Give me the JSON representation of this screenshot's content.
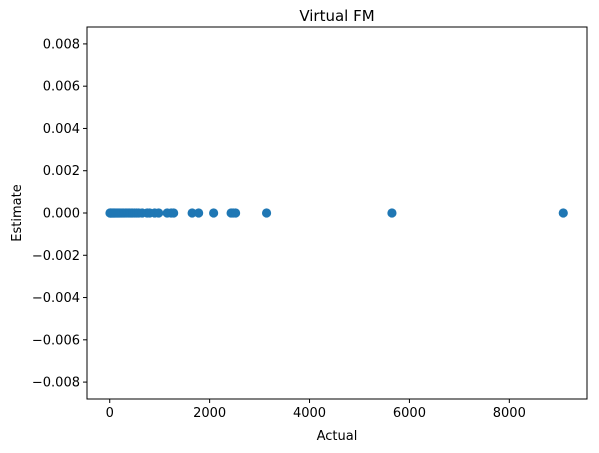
{
  "chart_data": {
    "type": "scatter",
    "title": "Virtual FM",
    "xlabel": "Actual",
    "ylabel": "Estimate",
    "xlim": [
      -455,
      9555
    ],
    "ylim": [
      -0.0088,
      0.0088
    ],
    "x_ticks": [
      0,
      2000,
      4000,
      6000,
      8000
    ],
    "x_tick_labels": [
      "0",
      "2000",
      "4000",
      "6000",
      "8000"
    ],
    "y_ticks": [
      -0.008,
      -0.006,
      -0.004,
      -0.002,
      0.0,
      0.002,
      0.004,
      0.006,
      0.008
    ],
    "y_tick_labels": [
      "−0.008",
      "−0.006",
      "−0.004",
      "−0.002",
      "0.000",
      "0.002",
      "0.004",
      "0.006",
      "0.008"
    ],
    "grid": false,
    "marker_color": "#1f77b4",
    "series": [
      {
        "x": [
          5,
          15,
          25,
          40,
          55,
          70,
          85,
          100,
          120,
          140,
          160,
          180,
          200,
          225,
          250,
          280,
          310,
          340,
          370,
          400,
          430,
          460,
          500,
          540,
          580,
          650,
          750,
          800,
          900,
          980,
          1150,
          1230,
          1280,
          1650,
          1780,
          2080,
          2430,
          2470,
          2520,
          3140,
          5650,
          9080
        ],
        "y": [
          0,
          0,
          0,
          0,
          0,
          0,
          0,
          0,
          0,
          0,
          0,
          0,
          0,
          0,
          0,
          0,
          0,
          0,
          0,
          0,
          0,
          0,
          0,
          0,
          0,
          0,
          0,
          0,
          0,
          0,
          0,
          0,
          0,
          0,
          0,
          0,
          0,
          0,
          0,
          0,
          0,
          0
        ]
      }
    ]
  }
}
